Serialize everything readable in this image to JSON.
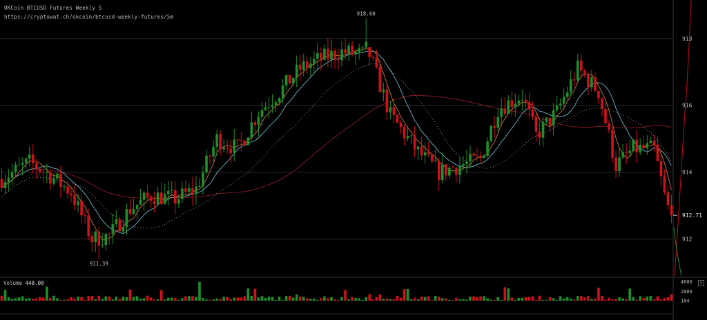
{
  "header": {
    "title": "OKCoin BTCUSD Futures Weekly 5",
    "url": "https://cryptowat.ch/okcoin/btcusd-weekly-futures/5m"
  },
  "volume_panel": {
    "label": "Volume",
    "value": "448.00",
    "close_glyph": "×",
    "ticks": [
      "4000",
      "2000",
      "104"
    ]
  },
  "colors": {
    "up": "#1e8f2a",
    "down": "#d0101a",
    "ma_fast": "#c87a3a",
    "ma_mid": "#6fb8c8",
    "ma_long": "#8a1a26",
    "dotted": "#aaaaaa",
    "grid": "#2a2a2a"
  },
  "chart_data": {
    "type": "candlestick",
    "title": "OKCoin BTCUSD Futures Weekly 5",
    "y_ticks": [
      912,
      914,
      916,
      918
    ],
    "ylim": [
      910.9,
      919.15
    ],
    "high_label": "918.60",
    "low_label": "911.39",
    "last_price": "912.71",
    "anchors": [
      [
        0,
        913.8
      ],
      [
        8,
        914.3
      ],
      [
        14,
        913.9
      ],
      [
        20,
        913.4
      ],
      [
        26,
        912.0
      ],
      [
        31,
        912.1
      ],
      [
        37,
        912.9
      ],
      [
        43,
        913.3
      ],
      [
        50,
        913.2
      ],
      [
        56,
        913.5
      ],
      [
        62,
        915.0
      ],
      [
        68,
        914.7
      ],
      [
        74,
        915.8
      ],
      [
        80,
        916.4
      ],
      [
        86,
        917.1
      ],
      [
        92,
        917.4
      ],
      [
        98,
        917.6
      ],
      [
        106,
        917.5
      ],
      [
        112,
        915.7
      ],
      [
        120,
        914.6
      ],
      [
        126,
        914.0
      ],
      [
        132,
        914.2
      ],
      [
        138,
        914.4
      ],
      [
        143,
        915.9
      ],
      [
        150,
        916.3
      ],
      [
        154,
        915.1
      ],
      [
        160,
        915.8
      ],
      [
        166,
        917.1
      ],
      [
        172,
        916.4
      ],
      [
        177,
        914.2
      ],
      [
        182,
        914.7
      ],
      [
        188,
        914.7
      ],
      [
        191,
        913.3
      ],
      [
        193,
        912.6
      ]
    ],
    "volume_ticks": [
      4000,
      2000,
      104
    ],
    "volume_max": 4000,
    "volume_last": 448
  }
}
